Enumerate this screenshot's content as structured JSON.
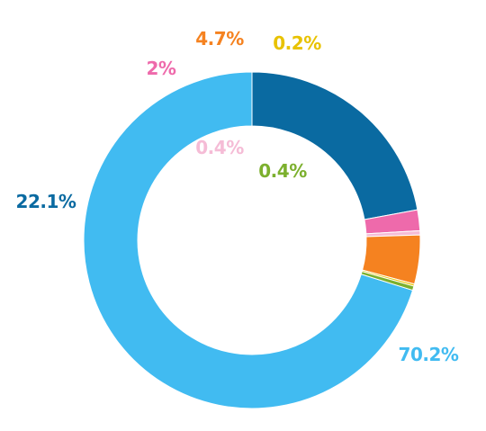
{
  "chart_data": {
    "type": "pie",
    "style": "donut",
    "title": "",
    "slices": [
      {
        "value": 70.2,
        "label": "70.2%",
        "color": "#41bbf1"
      },
      {
        "value": 22.1,
        "label": "22.1%",
        "color": "#0a6aa1"
      },
      {
        "value": 2.0,
        "label": "2%",
        "color": "#ee6aab"
      },
      {
        "value": 0.4,
        "label": "0.4%",
        "color": "#f5bcd6"
      },
      {
        "value": 4.7,
        "label": "4.7%",
        "color": "#f58220"
      },
      {
        "value": 0.2,
        "label": "0.2%",
        "color": "#e8c200"
      },
      {
        "value": 0.4,
        "label": "0.4%",
        "color": "#7cb02e"
      }
    ]
  }
}
